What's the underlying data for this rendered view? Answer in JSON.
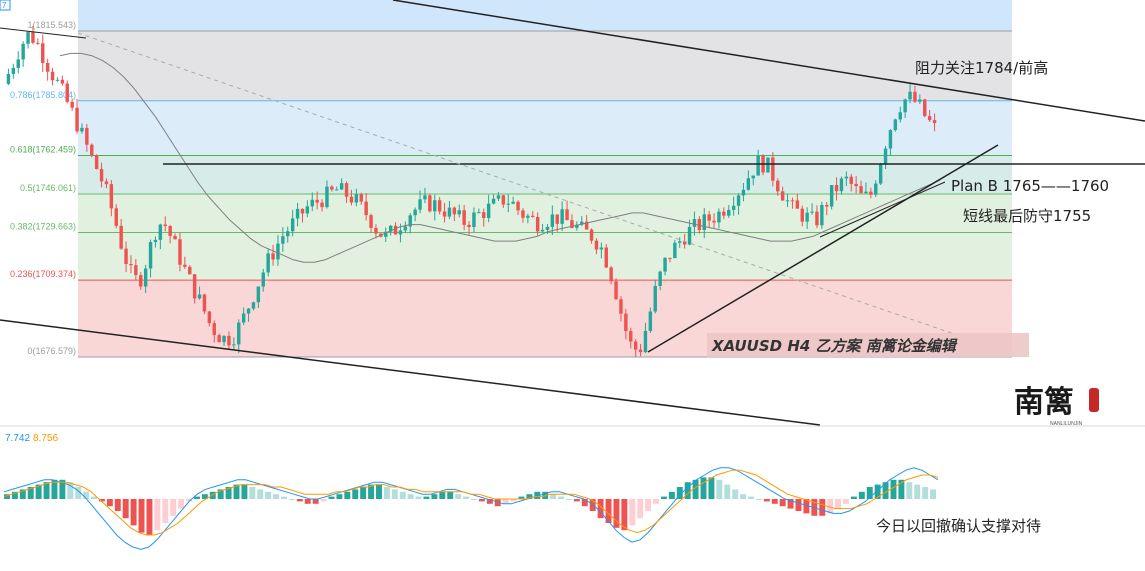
{
  "colors": {
    "up": "#26a69a",
    "down": "#ef5350",
    "up_light": "#b2dfdb",
    "down_light": "#ffcdd2",
    "macd_line": "#2196f3",
    "signal_line": "#ff9800",
    "ma_line": "#7f7f7f",
    "fib_line_1": "#9e9e9e",
    "fib_line_0786": "#64b5f6",
    "fib_line_0618": "#4caf50",
    "fib_line_05": "#66bb6a",
    "fib_line_0382": "#66bb6a",
    "fib_line_0236": "#ef5350",
    "fib_line_0": "#9e9e9e",
    "zone_top": "#cfe6fb",
    "zone_grey": "#e3e3e6",
    "zone_blue": "#dcecf9",
    "zone_teal": "#d7ece8",
    "zone_green": "#e2f0df",
    "zone_red": "#f9d7d7",
    "trend_line": "#222222",
    "dotted_diag": "#aaaaaa"
  },
  "chart_data": {
    "type": "candlestick",
    "instrument": "XAUUSD",
    "timeframe": "H4",
    "fib_levels": [
      {
        "ratio": "1",
        "price": 1815.543,
        "label": "1(1815.543)"
      },
      {
        "ratio": "0.786",
        "price": 1785.804,
        "label": "0.786(1785.804)"
      },
      {
        "ratio": "0.618",
        "price": 1762.459,
        "label": "0.618(1762.459)"
      },
      {
        "ratio": "0.5",
        "price": 1746.061,
        "label": "0.5(1746.061)"
      },
      {
        "ratio": "0.382",
        "price": 1729.663,
        "label": "0.382(1729.663)"
      },
      {
        "ratio": "0.236",
        "price": 1709.374,
        "label": "0.236(1709.374)"
      },
      {
        "ratio": "0",
        "price": 1676.579,
        "label": "0(1676.579)"
      }
    ],
    "price_ylim": [
      1660,
      1832
    ],
    "close_path": [
      1793,
      1800,
      1808,
      1814,
      1812,
      1805,
      1798,
      1792,
      1785,
      1778,
      1770,
      1762,
      1755,
      1746,
      1735,
      1722,
      1712,
      1708,
      1718,
      1730,
      1735,
      1728,
      1720,
      1712,
      1705,
      1698,
      1690,
      1686,
      1684,
      1686,
      1692,
      1700,
      1708,
      1716,
      1722,
      1728,
      1732,
      1736,
      1740,
      1742,
      1744,
      1746,
      1748,
      1746,
      1744,
      1740,
      1736,
      1730,
      1728,
      1730,
      1734,
      1738,
      1740,
      1742,
      1742,
      1740,
      1738,
      1736,
      1734,
      1736,
      1738,
      1740,
      1742,
      1744,
      1742,
      1738,
      1736,
      1734,
      1735,
      1736,
      1736,
      1734,
      1732,
      1730,
      1728,
      1724,
      1716,
      1704,
      1690,
      1680,
      1680,
      1692,
      1706,
      1716,
      1722,
      1726,
      1730,
      1732,
      1734,
      1736,
      1738,
      1742,
      1746,
      1750,
      1756,
      1760,
      1758,
      1752,
      1746,
      1740,
      1738,
      1736,
      1734,
      1740,
      1746,
      1750,
      1752,
      1748,
      1744,
      1746,
      1758,
      1770,
      1780,
      1786,
      1787,
      1784,
      1778,
      1774
    ],
    "ma_path": [
      1805,
      1806,
      1806,
      1805,
      1803,
      1800,
      1796,
      1791,
      1785,
      1779,
      1772,
      1765,
      1758,
      1751,
      1745,
      1740,
      1735,
      1731,
      1727,
      1724,
      1722,
      1720,
      1718,
      1717,
      1717,
      1718,
      1720,
      1722,
      1724,
      1726,
      1728,
      1730,
      1732,
      1733,
      1733,
      1732,
      1731,
      1730,
      1729,
      1728,
      1727,
      1726,
      1726,
      1726,
      1727,
      1728,
      1730,
      1731,
      1732,
      1733,
      1734,
      1735,
      1736,
      1737,
      1738,
      1738,
      1737,
      1736,
      1735,
      1734,
      1733,
      1732,
      1731,
      1730,
      1729,
      1728,
      1727,
      1726,
      1726,
      1726,
      1727,
      1728,
      1730,
      1732,
      1734,
      1736,
      1738,
      1740,
      1742,
      1744,
      1746,
      1748,
      1750,
      1752
    ],
    "trend_lines": [
      {
        "name": "upper-channel",
        "from": [
          0,
          1832
        ],
        "to": [
          1,
          1770
        ]
      },
      {
        "name": "resistance-horizontal",
        "price": 1758
      },
      {
        "name": "rising-support",
        "from": [
          0,
          1677
        ],
        "to": [
          1,
          1765
        ]
      }
    ],
    "macd": {
      "macd_value": "7.742",
      "signal_value": "8.756",
      "hist": [
        2,
        3,
        4,
        5,
        6,
        7,
        8,
        8,
        7,
        5,
        3,
        1,
        -1,
        -3,
        -5,
        -8,
        -11,
        -14,
        -15,
        -13,
        -10,
        -7,
        -4,
        -1,
        1,
        2,
        3,
        4,
        5,
        6,
        6,
        5,
        4,
        3,
        2,
        1,
        0,
        -1,
        -2,
        -2,
        -1,
        1,
        2,
        3,
        4,
        5,
        6,
        6,
        5,
        4,
        3,
        2,
        1,
        1,
        2,
        3,
        3,
        2,
        1,
        0,
        -1,
        -2,
        -3,
        -2,
        -1,
        1,
        2,
        3,
        3,
        2,
        1,
        0,
        -1,
        -3,
        -5,
        -8,
        -10,
        -12,
        -13,
        -11,
        -8,
        -5,
        -2,
        1,
        3,
        5,
        7,
        8,
        9,
        9,
        8,
        6,
        4,
        2,
        1,
        0,
        -1,
        -2,
        -3,
        -4,
        -5,
        -6,
        -7,
        -7,
        -6,
        -4,
        -2,
        1,
        3,
        5,
        6,
        7,
        8,
        8,
        7,
        6,
        5,
        4
      ],
      "macd_line": [
        3,
        4,
        5,
        6,
        7,
        8,
        8,
        7,
        6,
        4,
        1,
        -3,
        -7,
        -11,
        -15,
        -18,
        -20,
        -21,
        -20,
        -17,
        -13,
        -9,
        -5,
        -1,
        2,
        4,
        5,
        6,
        7,
        8,
        8,
        7,
        6,
        5,
        4,
        3,
        2,
        1,
        0,
        0,
        1,
        2,
        3,
        4,
        5,
        6,
        7,
        7,
        6,
        5,
        4,
        3,
        2,
        2,
        3,
        4,
        4,
        3,
        2,
        1,
        0,
        -1,
        -2,
        -2,
        -1,
        0,
        1,
        2,
        3,
        3,
        2,
        1,
        0,
        -2,
        -5,
        -9,
        -13,
        -16,
        -18,
        -17,
        -14,
        -10,
        -6,
        -2,
        2,
        5,
        8,
        10,
        12,
        13,
        13,
        12,
        10,
        8,
        6,
        4,
        2,
        0,
        -1,
        -2,
        -3,
        -4,
        -5,
        -6,
        -6,
        -5,
        -3,
        -1,
        2,
        5,
        8,
        10,
        12,
        13,
        12,
        10,
        8
      ],
      "signal_line": [
        1,
        2,
        3,
        4,
        5,
        6,
        7,
        7,
        7,
        6,
        5,
        3,
        0,
        -3,
        -6,
        -9,
        -12,
        -14,
        -15,
        -15,
        -14,
        -12,
        -10,
        -7,
        -4,
        -1,
        1,
        3,
        4,
        5,
        6,
        6,
        6,
        6,
        5,
        5,
        4,
        3,
        2,
        2,
        2,
        2,
        3,
        3,
        4,
        5,
        5,
        6,
        6,
        5,
        5,
        4,
        4,
        3,
        3,
        3,
        3,
        3,
        3,
        2,
        2,
        1,
        0,
        0,
        0,
        0,
        0,
        1,
        1,
        2,
        2,
        2,
        2,
        1,
        0,
        -2,
        -5,
        -8,
        -11,
        -13,
        -14,
        -13,
        -11,
        -8,
        -5,
        -2,
        1,
        4,
        6,
        8,
        10,
        11,
        12,
        12,
        11,
        10,
        8,
        6,
        4,
        2,
        1,
        0,
        -1,
        -2,
        -3,
        -4,
        -4,
        -4,
        -3,
        -2,
        0,
        2,
        4,
        6,
        8,
        9,
        10,
        10,
        9
      ]
    }
  },
  "annotations": {
    "resistance": "阻力关注1784/前高",
    "plan_b": "Plan B  1765——1760",
    "short_term": "短线最后防守1755",
    "today": "今日以回撤确认支撑对待",
    "watermark": "XAUUSD    H4    乙方案  南篱论金编辑"
  },
  "logo": {
    "chars": "南篱",
    "subtitle": "NANLILUNJIN"
  },
  "corner_badge": "7"
}
